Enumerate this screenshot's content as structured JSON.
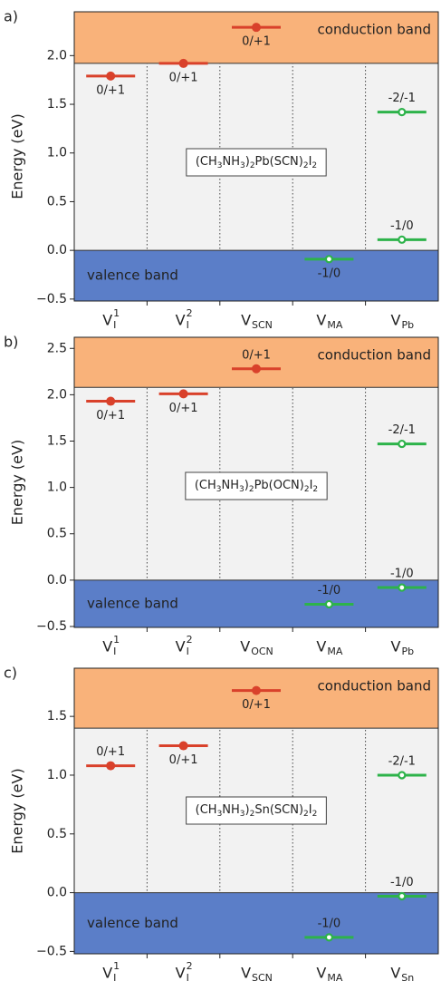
{
  "chart_data": [
    {
      "type": "defect_levels",
      "panel_label": "a)",
      "y_label": "Energy (eV)",
      "categories": [
        {
          "main": "V",
          "sub": "I",
          "sup": "1"
        },
        {
          "main": "V",
          "sub": "I",
          "sup": "2"
        },
        {
          "main": "V",
          "sub": "SCN"
        },
        {
          "main": "V",
          "sub": "MA"
        },
        {
          "main": "V",
          "sub": "Pb"
        }
      ],
      "ylim": [
        -0.52,
        2.45
      ],
      "yticks": [
        {
          "value": -0.5,
          "label": "−0.5"
        },
        {
          "value": 0,
          "label": "0.0"
        },
        0.5,
        {
          "value": 1,
          "label": "1.0"
        },
        1.5,
        {
          "value": 2,
          "label": "2.0"
        }
      ],
      "conduction_band": {
        "label": "conduction band",
        "value": 1.92,
        "color": "#f9b27a"
      },
      "valence_band": {
        "label": "valence band",
        "value": 0.0,
        "color": "#5b7ec8"
      },
      "formula": [
        {
          "t": "(CH"
        },
        {
          "t": "3",
          "sub": true
        },
        {
          "t": "NH"
        },
        {
          "t": "3",
          "sub": true
        },
        {
          "t": ")"
        },
        {
          "t": "2",
          "sub": true
        },
        {
          "t": "Pb(SCN)"
        },
        {
          "t": "2",
          "sub": true
        },
        {
          "t": "I"
        },
        {
          "t": "2",
          "sub": true
        }
      ],
      "levels": [
        [
          {
            "value": 1.79,
            "label": "0/+1",
            "color": "#d9412b",
            "marker": "filled"
          }
        ],
        [
          {
            "value": 1.92,
            "label": "0/+1",
            "color": "#d9412b",
            "marker": "filled"
          }
        ],
        [
          {
            "value": 2.29,
            "label": "0/+1",
            "color": "#d9412b",
            "marker": "filled"
          }
        ],
        [
          {
            "value": -0.09,
            "label": "-1/0",
            "color": "#2db34a",
            "marker": "hollow"
          }
        ],
        [
          {
            "value": 1.42,
            "label": "-2/-1",
            "color": "#2db34a",
            "marker": "hollow"
          },
          {
            "value": 0.11,
            "label": "-1/0",
            "color": "#2db34a",
            "marker": "hollow"
          }
        ]
      ]
    },
    {
      "type": "defect_levels",
      "panel_label": "b)",
      "y_label": "Energy (eV)",
      "categories": [
        {
          "main": "V",
          "sub": "I",
          "sup": "1"
        },
        {
          "main": "V",
          "sub": "I",
          "sup": "2"
        },
        {
          "main": "V",
          "sub": "OCN"
        },
        {
          "main": "V",
          "sub": "MA"
        },
        {
          "main": "V",
          "sub": "Pb"
        }
      ],
      "ylim": [
        -0.51,
        2.62
      ],
      "yticks": [
        {
          "value": -0.5,
          "label": "−0.5"
        },
        {
          "value": 0,
          "label": "0.0"
        },
        0.5,
        {
          "value": 1,
          "label": "1.0"
        },
        1.5,
        {
          "value": 2,
          "label": "2.0"
        },
        2.5
      ],
      "conduction_band": {
        "label": "conduction band",
        "value": 2.08,
        "color": "#f9b27a"
      },
      "valence_band": {
        "label": "valence band",
        "value": 0.0,
        "color": "#5b7ec8"
      },
      "formula": [
        {
          "t": "(CH"
        },
        {
          "t": "3",
          "sub": true
        },
        {
          "t": "NH"
        },
        {
          "t": "3",
          "sub": true
        },
        {
          "t": ")"
        },
        {
          "t": "2",
          "sub": true
        },
        {
          "t": "Pb(OCN)"
        },
        {
          "t": "2",
          "sub": true
        },
        {
          "t": "I"
        },
        {
          "t": "2",
          "sub": true
        }
      ],
      "levels": [
        [
          {
            "value": 1.93,
            "label": "0/+1",
            "color": "#d9412b",
            "marker": "filled"
          }
        ],
        [
          {
            "value": 2.01,
            "label": "0/+1",
            "color": "#d9412b",
            "marker": "filled"
          }
        ],
        [
          {
            "value": 2.28,
            "label": "0/+1",
            "color": "#d9412b",
            "marker": "filled"
          }
        ],
        [
          {
            "value": -0.26,
            "label": "-1/0",
            "color": "#2db34a",
            "marker": "hollow"
          }
        ],
        [
          {
            "value": 1.47,
            "label": "-2/-1",
            "color": "#2db34a",
            "marker": "hollow"
          },
          {
            "value": -0.08,
            "label": "-1/0",
            "color": "#2db34a",
            "marker": "hollow"
          }
        ]
      ]
    },
    {
      "type": "defect_levels",
      "panel_label": "c)",
      "y_label": "Energy (eV)",
      "categories": [
        {
          "main": "V",
          "sub": "I",
          "sup": "1"
        },
        {
          "main": "V",
          "sub": "I",
          "sup": "2"
        },
        {
          "main": "V",
          "sub": "SCN"
        },
        {
          "main": "V",
          "sub": "MA"
        },
        {
          "main": "V",
          "sub": "Sn"
        }
      ],
      "ylim": [
        -0.52,
        1.91
      ],
      "yticks": [
        {
          "value": -0.5,
          "label": "−0.5"
        },
        {
          "value": 0,
          "label": "0.0"
        },
        0.5,
        {
          "value": 1,
          "label": "1.0"
        },
        1.5
      ],
      "conduction_band": {
        "label": "conduction band",
        "value": 1.4,
        "color": "#f9b27a"
      },
      "valence_band": {
        "label": "valence band",
        "value": 0.0,
        "color": "#5b7ec8"
      },
      "formula": [
        {
          "t": "(CH"
        },
        {
          "t": "3",
          "sub": true
        },
        {
          "t": "NH"
        },
        {
          "t": "3",
          "sub": true
        },
        {
          "t": ")"
        },
        {
          "t": "2",
          "sub": true
        },
        {
          "t": "Sn(SCN)"
        },
        {
          "t": "2",
          "sub": true
        },
        {
          "t": "I"
        },
        {
          "t": "2",
          "sub": true
        }
      ],
      "levels": [
        [
          {
            "value": 1.08,
            "label": "0/+1",
            "color": "#d9412b",
            "marker": "filled"
          }
        ],
        [
          {
            "value": 1.25,
            "label": "0/+1",
            "color": "#d9412b",
            "marker": "filled"
          }
        ],
        [
          {
            "value": 1.72,
            "label": "0/+1",
            "color": "#d9412b",
            "marker": "filled"
          }
        ],
        [
          {
            "value": -0.38,
            "label": "-1/0",
            "color": "#2db34a",
            "marker": "hollow"
          }
        ],
        [
          {
            "value": 1.0,
            "label": "-2/-1",
            "color": "#2db34a",
            "marker": "hollow"
          },
          {
            "value": -0.03,
            "label": "-1/0",
            "color": "#2db34a",
            "marker": "hollow"
          }
        ]
      ]
    }
  ]
}
